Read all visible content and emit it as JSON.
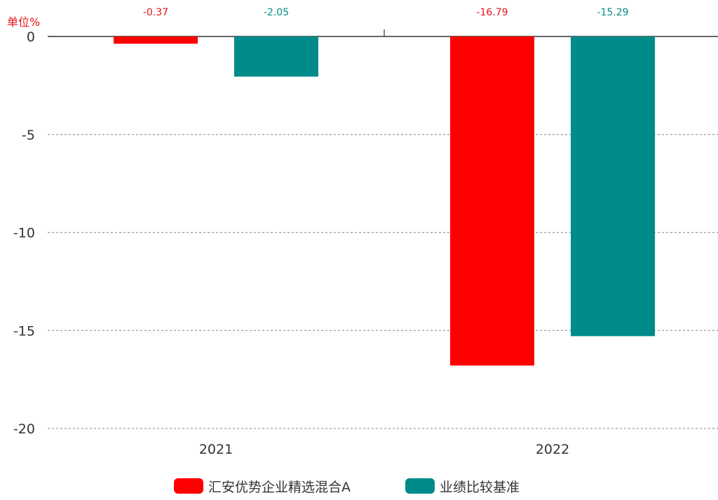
{
  "chart_data": {
    "type": "bar",
    "unit_label": "单位%",
    "categories": [
      "2021",
      "2022"
    ],
    "series": [
      {
        "name": "汇安优势企业精选混合A",
        "color": "#ff0000",
        "label_color": "#e8141b",
        "values": [
          -0.37,
          -16.79
        ],
        "labels": [
          "-0.37",
          "-16.79"
        ]
      },
      {
        "name": "业绩比较基准",
        "color": "#008b8b",
        "label_color": "#0a8a8a",
        "values": [
          -2.05,
          -15.29
        ],
        "labels": [
          "-2.05",
          "-15.29"
        ]
      }
    ],
    "yticks": [
      {
        "value": 0,
        "label": "0"
      },
      {
        "value": -5,
        "label": "-5"
      },
      {
        "value": -10,
        "label": "-10"
      },
      {
        "value": -15,
        "label": "-15"
      },
      {
        "value": -20,
        "label": "-20"
      }
    ],
    "ylim": [
      -20,
      0
    ],
    "grid": true,
    "legend_position": "bottom"
  }
}
